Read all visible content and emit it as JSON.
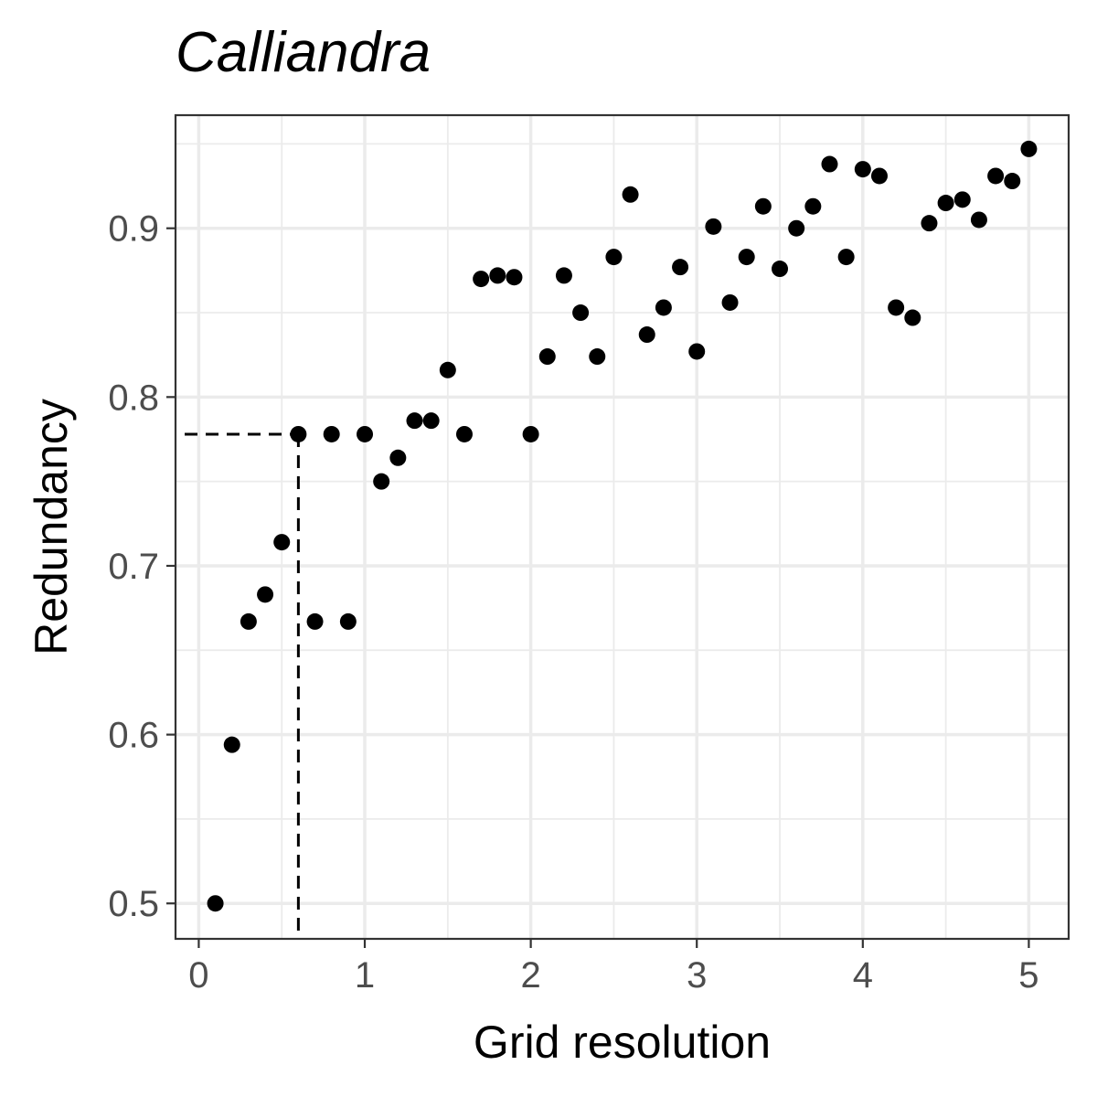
{
  "chart_data": {
    "type": "scatter",
    "title": "Calliandra",
    "xlabel": "Grid resolution",
    "ylabel": "Redundancy",
    "xlim": [
      -0.14,
      5.24
    ],
    "ylim": [
      0.479,
      0.967
    ],
    "x_ticks": [
      0,
      1,
      2,
      3,
      4,
      5
    ],
    "x_tick_labels": [
      "0",
      "1",
      "2",
      "3",
      "4",
      "5"
    ],
    "y_ticks": [
      0.5,
      0.6,
      0.7,
      0.8,
      0.9
    ],
    "y_tick_labels": [
      "0.5",
      "0.6",
      "0.7",
      "0.8",
      "0.9"
    ],
    "grid": true,
    "reference_lines": {
      "x": 0.6,
      "y": 0.778,
      "style": "dashed"
    },
    "series": [
      {
        "x": [
          0.1,
          0.2,
          0.3,
          0.4,
          0.5,
          0.6,
          0.7,
          0.8,
          0.9,
          1.0,
          1.1,
          1.2,
          1.3,
          1.4,
          1.5,
          1.6,
          1.7,
          1.8,
          1.9,
          2.0,
          2.1,
          2.2,
          2.3,
          2.4,
          2.5,
          2.6,
          2.7,
          2.8,
          2.9,
          3.0,
          3.1,
          3.2,
          3.3,
          3.4,
          3.5,
          3.6,
          3.7,
          3.8,
          3.9,
          4.0,
          4.1,
          4.2,
          4.3,
          4.4,
          4.5,
          4.6,
          4.7,
          4.8,
          4.9,
          5.0
        ],
        "y": [
          0.5,
          0.594,
          0.667,
          0.683,
          0.714,
          0.778,
          0.667,
          0.778,
          0.667,
          0.778,
          0.75,
          0.764,
          0.786,
          0.786,
          0.816,
          0.778,
          0.87,
          0.872,
          0.871,
          0.778,
          0.824,
          0.872,
          0.85,
          0.824,
          0.883,
          0.92,
          0.837,
          0.853,
          0.877,
          0.827,
          0.901,
          0.856,
          0.883,
          0.913,
          0.876,
          0.9,
          0.913,
          0.938,
          0.883,
          0.935,
          0.931,
          0.853,
          0.847,
          0.903,
          0.915,
          0.917,
          0.905,
          0.931,
          0.928,
          0.947
        ]
      }
    ]
  }
}
